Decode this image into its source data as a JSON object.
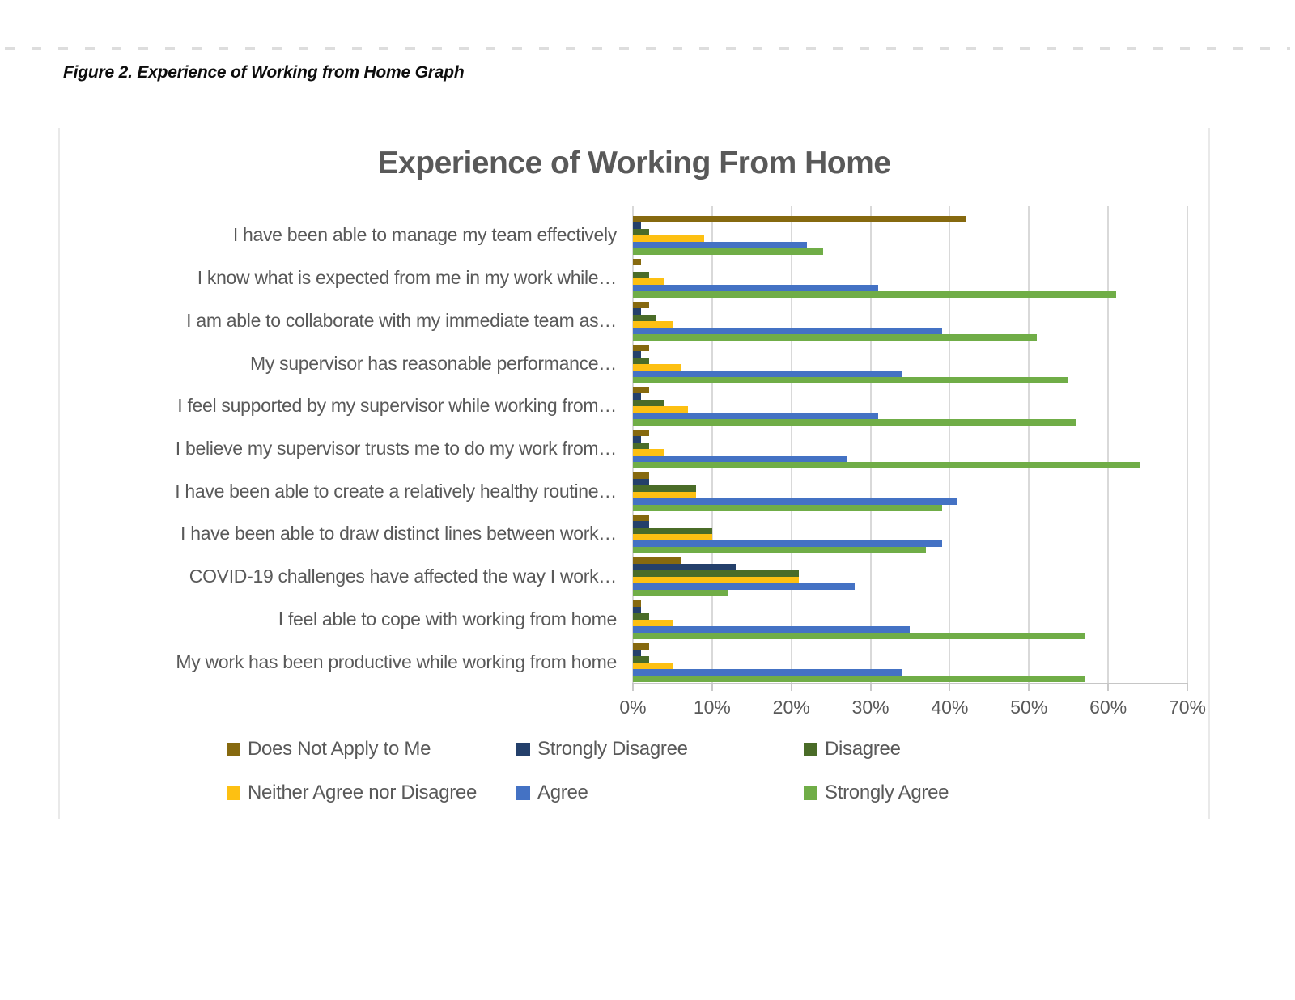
{
  "figure": {
    "caption": "Figure 2. Experience of Working from Home Graph"
  },
  "chart_data": {
    "type": "bar",
    "orientation": "horizontal",
    "title": "Experience of Working From Home",
    "categories": [
      "I have been able to manage my team effectively",
      "I know what is expected from me in my work while…",
      "I am able to collaborate with my immediate team as…",
      "My supervisor has reasonable performance…",
      "I feel supported by my supervisor while working from…",
      "I believe my supervisor trusts me to do my work from…",
      "I have been able to create a relatively healthy routine…",
      "I have been able to draw distinct lines between work…",
      "COVID-19 challenges have affected the way I work…",
      "I feel able to cope with working from home",
      "My work has been productive while working from home"
    ],
    "series": [
      {
        "name": "Does Not Apply to Me",
        "color": "#86690f",
        "values": [
          42,
          1,
          2,
          2,
          2,
          2,
          2,
          2,
          6,
          1,
          2
        ]
      },
      {
        "name": "Strongly Disagree",
        "color": "#24406b",
        "values": [
          1,
          0,
          1,
          1,
          1,
          1,
          2,
          2,
          13,
          1,
          1
        ]
      },
      {
        "name": "Disagree",
        "color": "#4a6c28",
        "values": [
          2,
          2,
          3,
          2,
          4,
          2,
          8,
          10,
          21,
          2,
          2
        ]
      },
      {
        "name": "Neither Agree nor Disagree",
        "color": "#fdc012",
        "values": [
          9,
          4,
          5,
          6,
          7,
          4,
          8,
          10,
          21,
          5,
          5
        ]
      },
      {
        "name": "Agree",
        "color": "#4472c4",
        "values": [
          22,
          31,
          39,
          34,
          31,
          27,
          41,
          39,
          28,
          35,
          34
        ]
      },
      {
        "name": "Strongly Agree",
        "color": "#70ad47",
        "values": [
          24,
          61,
          51,
          55,
          56,
          64,
          39,
          37,
          12,
          57,
          57
        ]
      }
    ],
    "x_ticks": [
      "0%",
      "10%",
      "20%",
      "30%",
      "40%",
      "50%",
      "60%",
      "70%"
    ],
    "xlim": [
      0,
      70
    ],
    "grid": true,
    "legend_position": "bottom"
  }
}
